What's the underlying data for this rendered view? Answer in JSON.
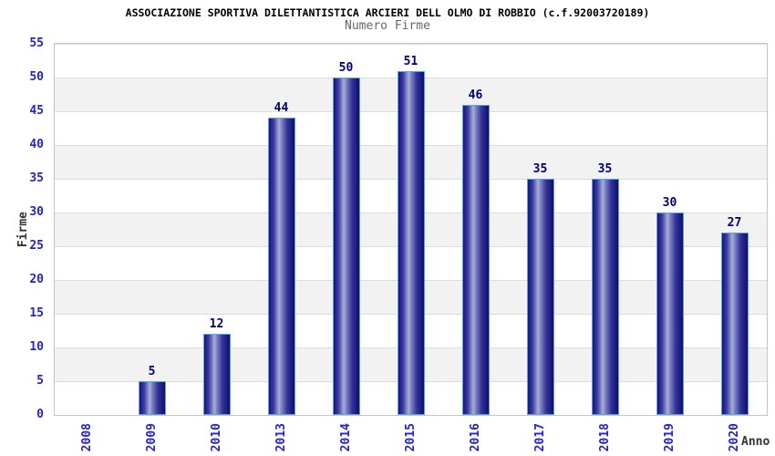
{
  "title": "ASSOCIAZIONE SPORTIVA DILETTANTISTICA ARCIERI DELL OLMO DI ROBBIO (c.f.92003720189)",
  "subtitle": "Numero Firme",
  "chart_data": {
    "type": "bar",
    "title": "Numero Firme",
    "categories": [
      "2008",
      "2009",
      "2010",
      "2013",
      "2014",
      "2015",
      "2016",
      "2017",
      "2018",
      "2019",
      "2020"
    ],
    "values": [
      0,
      5,
      12,
      44,
      50,
      51,
      46,
      35,
      35,
      30,
      27
    ],
    "bar_value_labels": [
      "",
      "5",
      "12",
      "44",
      "50",
      "51",
      "46",
      "35",
      "35",
      "30",
      "27"
    ],
    "xlabel": "Anno",
    "ylabel": "Firme",
    "ylim": [
      0,
      55
    ],
    "yticks": [
      55,
      50,
      45,
      40,
      35,
      30,
      25,
      20,
      15,
      10,
      5,
      0
    ],
    "grid": "horizontal-bands-alternating",
    "legend_position": "none"
  },
  "colors": {
    "title": "#000000",
    "subtitle": "#666666",
    "tick_label": "#2323cb",
    "value_label": "#00006e",
    "axis_title": "#333333",
    "bar_border": "#5aa2ee",
    "bar_dark": "#15157c",
    "bar_light": "#a9afd9",
    "band_gray": "#f2f2f2",
    "band_white": "#ffffff",
    "plot_border": "#c6c6c6"
  }
}
